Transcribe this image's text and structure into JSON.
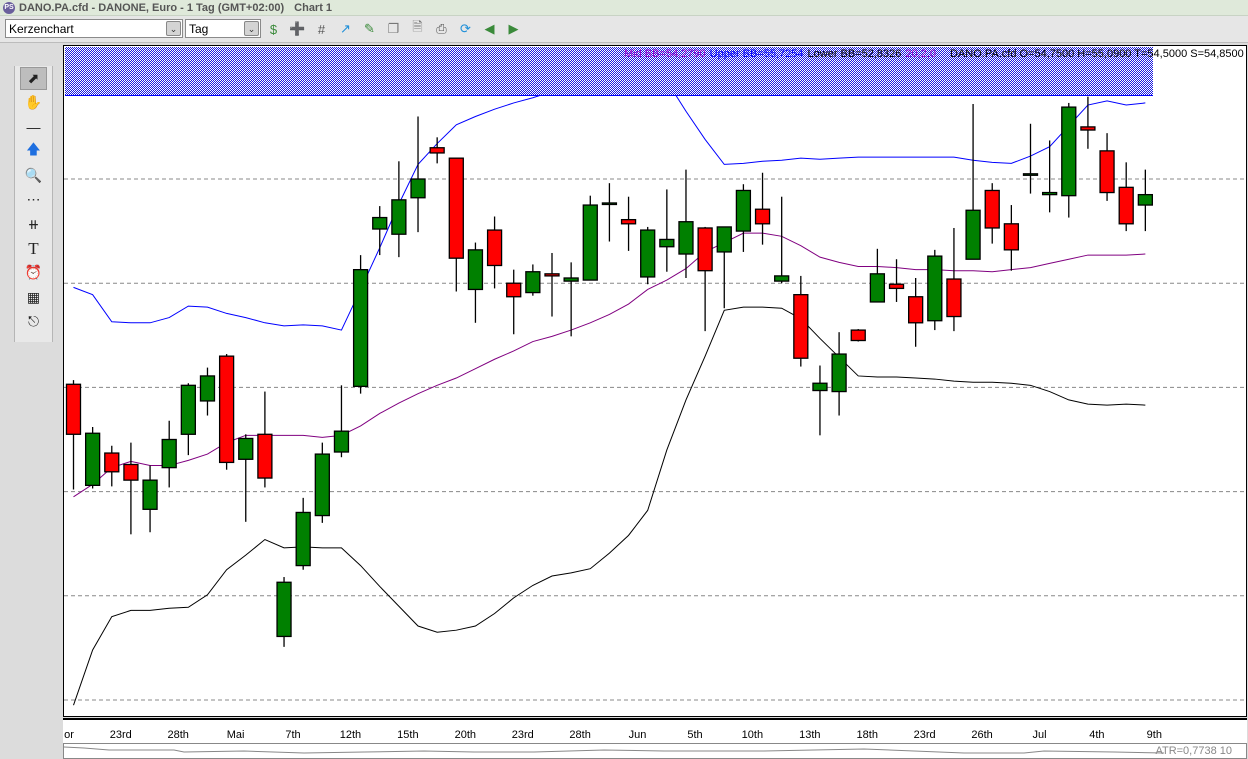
{
  "window": {
    "title": "DANO.PA.cfd - DANONE, Euro - 1 Tag (GMT+02:00)",
    "chart_name": "Chart 1"
  },
  "toolbar": {
    "chart_type": "Kerzenchart",
    "period": "Tag",
    "icons": [
      "new-order-icon",
      "add-instrument-icon",
      "grid-icon",
      "indicator-icon",
      "edit-chart-icon",
      "window-icon",
      "document-icon",
      "print-icon",
      "refresh-icon",
      "back-icon",
      "forward-icon"
    ]
  },
  "left_tools": [
    "cursor-icon",
    "hand-icon",
    "line-icon",
    "arrow-icon",
    "zoom-icon",
    "gridlines-icon",
    "fan-icon",
    "text-icon",
    "alarm-icon",
    "calculator-icon",
    "export-icon"
  ],
  "legend": {
    "mid": "Mid BB=54,2790",
    "upper": "Upper BB=55,7254",
    "lower": "Lower BB=52,8326",
    "params": "20,2,0",
    "ohlc": "DANO.PA.cfd O=54,7500 H=55,0900 T=54,5000 S=54,8500"
  },
  "colors": {
    "up": "#008000",
    "down": "#ff0000",
    "upper_band": "#0000ff",
    "mid_band": "#800080",
    "lower_band": "#000000",
    "legend_mid": "#9900cc",
    "legend_upper": "#0000ff"
  },
  "atr": {
    "label": "ATR=0,7738  10"
  },
  "chart_data": {
    "type": "candlestick",
    "grid": true,
    "gridlines": [
      55,
      54,
      53,
      52,
      51,
      50
    ],
    "x_labels": [
      {
        "index": 0,
        "label": "or"
      },
      {
        "index": 2,
        "label": "23rd"
      },
      {
        "index": 5,
        "label": "28th"
      },
      {
        "index": 8,
        "label": "Mai"
      },
      {
        "index": 11,
        "label": "7th"
      },
      {
        "index": 14,
        "label": "12th"
      },
      {
        "index": 17,
        "label": "15th"
      },
      {
        "index": 20,
        "label": "20th"
      },
      {
        "index": 23,
        "label": "23rd"
      },
      {
        "index": 26,
        "label": "28th"
      },
      {
        "index": 29,
        "label": "Jun"
      },
      {
        "index": 32,
        "label": "5th"
      },
      {
        "index": 35,
        "label": "10th"
      },
      {
        "index": 38,
        "label": "13th"
      },
      {
        "index": 41,
        "label": "18th"
      },
      {
        "index": 44,
        "label": "23rd"
      },
      {
        "index": 47,
        "label": "26th"
      },
      {
        "index": 50,
        "label": "Jul"
      },
      {
        "index": 53,
        "label": "4th"
      },
      {
        "index": 56,
        "label": "9th"
      }
    ],
    "ohlc": [
      [
        53.03,
        53.07,
        52.02,
        52.55
      ],
      [
        52.06,
        52.62,
        52.03,
        52.56
      ],
      [
        52.37,
        52.44,
        52.05,
        52.19
      ],
      [
        52.26,
        52.47,
        51.59,
        52.11
      ],
      [
        51.83,
        52.25,
        51.61,
        52.11
      ],
      [
        52.23,
        52.68,
        52.04,
        52.5
      ],
      [
        52.55,
        53.04,
        52.35,
        53.02
      ],
      [
        52.87,
        53.19,
        52.73,
        53.11
      ],
      [
        53.3,
        53.32,
        52.21,
        52.28
      ],
      [
        52.31,
        52.55,
        51.71,
        52.51
      ],
      [
        52.55,
        52.96,
        52.04,
        52.13
      ],
      [
        50.61,
        51.18,
        50.51,
        51.13
      ],
      [
        51.29,
        51.94,
        51.25,
        51.8
      ],
      [
        51.77,
        52.47,
        51.7,
        52.36
      ],
      [
        52.38,
        53.02,
        52.33,
        52.58
      ],
      [
        53.01,
        54.27,
        52.94,
        54.13
      ],
      [
        54.52,
        54.74,
        54.27,
        54.63
      ],
      [
        54.47,
        55.17,
        54.25,
        54.8
      ],
      [
        54.82,
        55.6,
        54.49,
        55.0
      ],
      [
        55.3,
        55.4,
        55.15,
        55.25
      ],
      [
        55.2,
        55.2,
        53.92,
        54.24
      ],
      [
        53.94,
        54.39,
        53.62,
        54.32
      ],
      [
        54.51,
        54.64,
        53.95,
        54.17
      ],
      [
        54.0,
        54.13,
        53.51,
        53.87
      ],
      [
        53.91,
        54.18,
        53.88,
        54.11
      ],
      [
        54.09,
        54.29,
        53.68,
        54.07
      ],
      [
        54.02,
        54.2,
        53.49,
        54.05
      ],
      [
        54.03,
        54.84,
        54.03,
        54.75
      ],
      [
        54.77,
        54.96,
        54.4,
        54.77
      ],
      [
        54.61,
        54.83,
        54.31,
        54.57
      ],
      [
        54.06,
        54.54,
        53.99,
        54.51
      ],
      [
        54.35,
        54.9,
        54.11,
        54.42
      ],
      [
        54.28,
        55.09,
        54.05,
        54.59
      ],
      [
        54.53,
        54.54,
        53.54,
        54.12
      ],
      [
        54.3,
        54.54,
        53.76,
        54.54
      ],
      [
        54.5,
        54.95,
        54.3,
        54.89
      ],
      [
        54.71,
        55.06,
        54.37,
        54.57
      ],
      [
        54.02,
        54.83,
        54.0,
        54.07
      ],
      [
        53.89,
        54.07,
        53.2,
        53.28
      ],
      [
        52.97,
        53.21,
        52.54,
        53.04
      ],
      [
        52.96,
        53.53,
        52.73,
        53.32
      ],
      [
        53.55,
        53.56,
        53.44,
        53.45
      ],
      [
        53.82,
        54.33,
        53.82,
        54.09
      ],
      [
        53.99,
        54.23,
        53.82,
        53.95
      ],
      [
        53.87,
        54.05,
        53.39,
        53.62
      ],
      [
        53.64,
        54.32,
        53.55,
        54.26
      ],
      [
        54.04,
        54.53,
        53.54,
        53.68
      ],
      [
        54.23,
        55.72,
        54.23,
        54.7
      ],
      [
        54.89,
        54.96,
        54.38,
        54.53
      ],
      [
        54.57,
        54.75,
        54.12,
        54.32
      ],
      [
        55.05,
        55.53,
        54.86,
        55.05
      ],
      [
        54.85,
        55.37,
        54.68,
        54.87
      ],
      [
        54.84,
        55.73,
        54.63,
        55.69
      ],
      [
        55.5,
        55.79,
        55.29,
        55.47
      ],
      [
        55.27,
        55.44,
        54.79,
        54.87
      ],
      [
        54.92,
        55.16,
        54.5,
        54.57
      ],
      [
        54.75,
        55.09,
        54.5,
        54.85
      ]
    ],
    "upper_bb": [
      53.96,
      53.89,
      53.63,
      53.62,
      53.62,
      53.67,
      53.78,
      53.77,
      53.71,
      53.67,
      53.62,
      53.59,
      53.6,
      53.59,
      53.55,
      53.94,
      54.34,
      54.76,
      55.14,
      55.34,
      55.52,
      55.6,
      55.67,
      55.73,
      55.78,
      55.84,
      55.9,
      55.99,
      56.07,
      56.13,
      56.12,
      55.94,
      55.65,
      55.38,
      55.14,
      55.15,
      55.17,
      55.18,
      55.2,
      55.19,
      55.2,
      55.21,
      55.21,
      55.21,
      55.21,
      55.21,
      55.21,
      55.18,
      55.16,
      55.15,
      55.22,
      55.31,
      55.51,
      55.71,
      55.75,
      55.71,
      55.73
    ],
    "mid_bb": [
      51.95,
      52.07,
      52.23,
      52.29,
      52.25,
      52.25,
      52.3,
      52.36,
      52.47,
      52.54,
      52.54,
      52.54,
      52.54,
      52.52,
      52.54,
      52.63,
      52.75,
      52.85,
      52.94,
      53.02,
      53.09,
      53.18,
      53.27,
      53.35,
      53.44,
      53.49,
      53.55,
      53.62,
      53.7,
      53.8,
      53.94,
      54.03,
      54.14,
      54.3,
      54.39,
      54.48,
      54.48,
      54.45,
      54.36,
      54.25,
      54.2,
      54.16,
      54.16,
      54.15,
      54.13,
      54.13,
      54.12,
      54.12,
      54.11,
      54.13,
      54.15,
      54.19,
      54.23,
      54.27,
      54.27,
      54.27,
      54.28
    ],
    "lower_bb": [
      49.95,
      50.48,
      50.8,
      50.86,
      50.86,
      50.88,
      50.89,
      51.01,
      51.25,
      51.39,
      51.54,
      51.46,
      51.47,
      51.46,
      51.46,
      51.29,
      51.09,
      50.9,
      50.71,
      50.65,
      50.67,
      50.71,
      50.83,
      50.98,
      51.1,
      51.19,
      51.22,
      51.26,
      51.41,
      51.58,
      51.82,
      52.4,
      52.88,
      53.3,
      53.74,
      53.77,
      53.77,
      53.76,
      53.66,
      53.47,
      53.29,
      53.11,
      53.1,
      53.1,
      53.09,
      53.08,
      53.06,
      53.05,
      53.05,
      53.04,
      53.02,
      52.96,
      52.88,
      52.84,
      52.83,
      52.84,
      52.83
    ]
  }
}
